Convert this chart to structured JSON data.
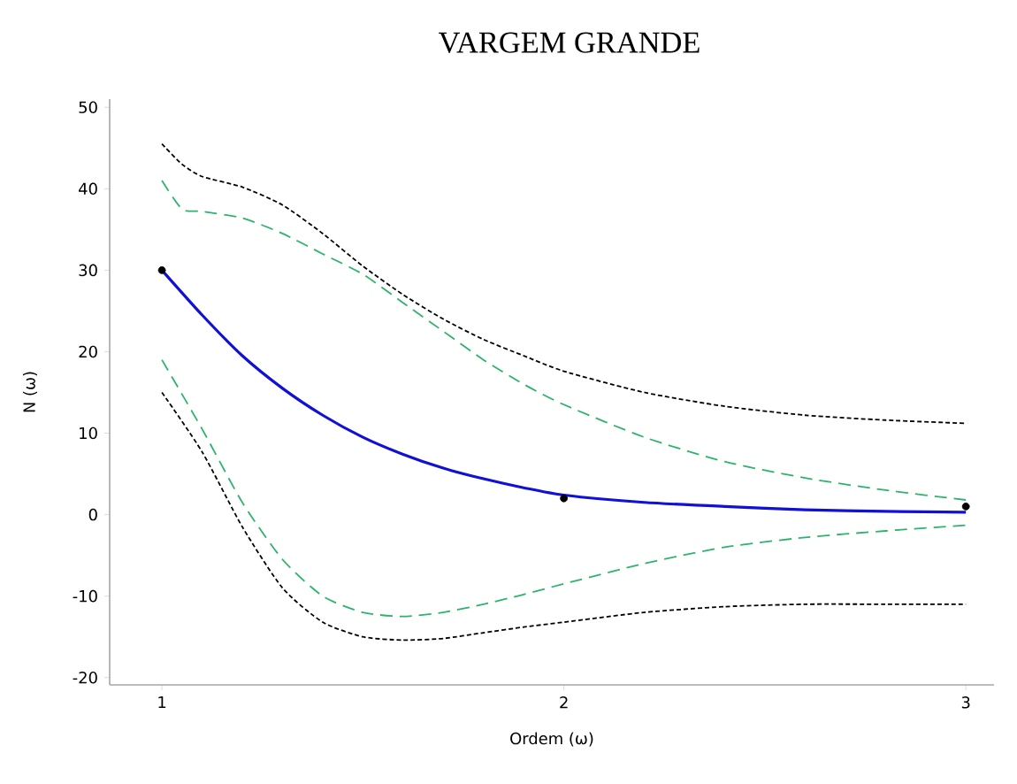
{
  "chart_data": {
    "type": "line",
    "title": "VARGEM GRANDE",
    "xlabel": "Ordem (ω)",
    "ylabel": "N (ω)",
    "xlim": [
      0.87,
      3.07
    ],
    "ylim": [
      -20.9,
      51
    ],
    "xticks": [
      1,
      2,
      3
    ],
    "yticks": [
      -20,
      -10,
      0,
      10,
      20,
      30,
      40,
      50
    ],
    "grid": false,
    "series": [
      {
        "color": "#000000",
        "line_style": "dotted",
        "marker": "none",
        "x": [
          1.0,
          1.05,
          1.1,
          1.2,
          1.3,
          1.4,
          1.5,
          1.6,
          1.7,
          1.8,
          1.9,
          2.0,
          2.2,
          2.4,
          2.6,
          2.8,
          3.0
        ],
        "values": [
          45.5,
          43,
          41.5,
          40.2,
          38,
          34.5,
          30.5,
          27,
          24,
          21.5,
          19.5,
          17.6,
          15,
          13.3,
          12.2,
          11.6,
          11.2
        ]
      },
      {
        "color": "#2db36b",
        "line_style": "dashed",
        "marker": "none",
        "x": [
          1.0,
          1.05,
          1.1,
          1.2,
          1.3,
          1.4,
          1.5,
          1.6,
          1.7,
          1.8,
          1.9,
          2.0,
          2.2,
          2.4,
          2.6,
          2.8,
          3.0
        ],
        "values": [
          41,
          37.5,
          37.2,
          36.4,
          34.5,
          32,
          29.5,
          26,
          22.5,
          19,
          16,
          13.5,
          9.5,
          6.5,
          4.5,
          3,
          1.8
        ]
      },
      {
        "color": "#1010d8",
        "line_style": "solid",
        "marker": "none",
        "x": [
          1.0,
          1.1,
          1.2,
          1.3,
          1.4,
          1.5,
          1.6,
          1.7,
          1.8,
          1.9,
          2.0,
          2.2,
          2.4,
          2.6,
          2.8,
          3.0
        ],
        "values": [
          30,
          24.5,
          19.5,
          15.5,
          12.2,
          9.5,
          7.4,
          5.7,
          4.4,
          3.3,
          2.4,
          1.5,
          1.0,
          0.6,
          0.4,
          0.3
        ]
      },
      {
        "color": "#2db36b",
        "line_style": "dashed",
        "marker": "none",
        "x": [
          1.0,
          1.1,
          1.2,
          1.3,
          1.4,
          1.5,
          1.6,
          1.7,
          1.8,
          1.9,
          2.0,
          2.2,
          2.4,
          2.6,
          2.8,
          3.0
        ],
        "values": [
          19,
          10.5,
          1.5,
          -5.5,
          -10,
          -12,
          -12.5,
          -12,
          -11,
          -9.8,
          -8.5,
          -6,
          -4,
          -2.8,
          -2,
          -1.3
        ]
      },
      {
        "color": "#000000",
        "line_style": "dotted",
        "marker": "none",
        "x": [
          1.0,
          1.1,
          1.2,
          1.3,
          1.4,
          1.5,
          1.6,
          1.7,
          1.8,
          1.9,
          2.0,
          2.2,
          2.4,
          2.6,
          2.8,
          3.0
        ],
        "values": [
          15,
          7.7,
          -1.5,
          -9,
          -13.2,
          -15,
          -15.4,
          -15.2,
          -14.5,
          -13.8,
          -13.2,
          -12,
          -11.3,
          -11,
          -11,
          -11
        ]
      },
      {
        "type": "scatter",
        "color": "#000000",
        "marker": "circle",
        "x": [
          1,
          2,
          3
        ],
        "values": [
          30,
          2,
          1
        ]
      }
    ]
  }
}
